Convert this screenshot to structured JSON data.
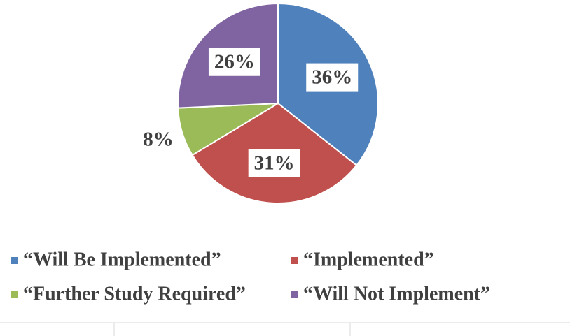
{
  "chart_data": {
    "type": "pie",
    "categories": [
      "“Will Be Implemented”",
      "“Implemented”",
      "“Further Study Required”",
      "“Will Not Implement”"
    ],
    "values": [
      36,
      31,
      8,
      26
    ],
    "value_labels": [
      "36%",
      "31%",
      "8%",
      "26%"
    ],
    "colors": [
      "#4f81bd",
      "#c0504d",
      "#9bbb59",
      "#8064a2"
    ],
    "legend": "bottom"
  }
}
